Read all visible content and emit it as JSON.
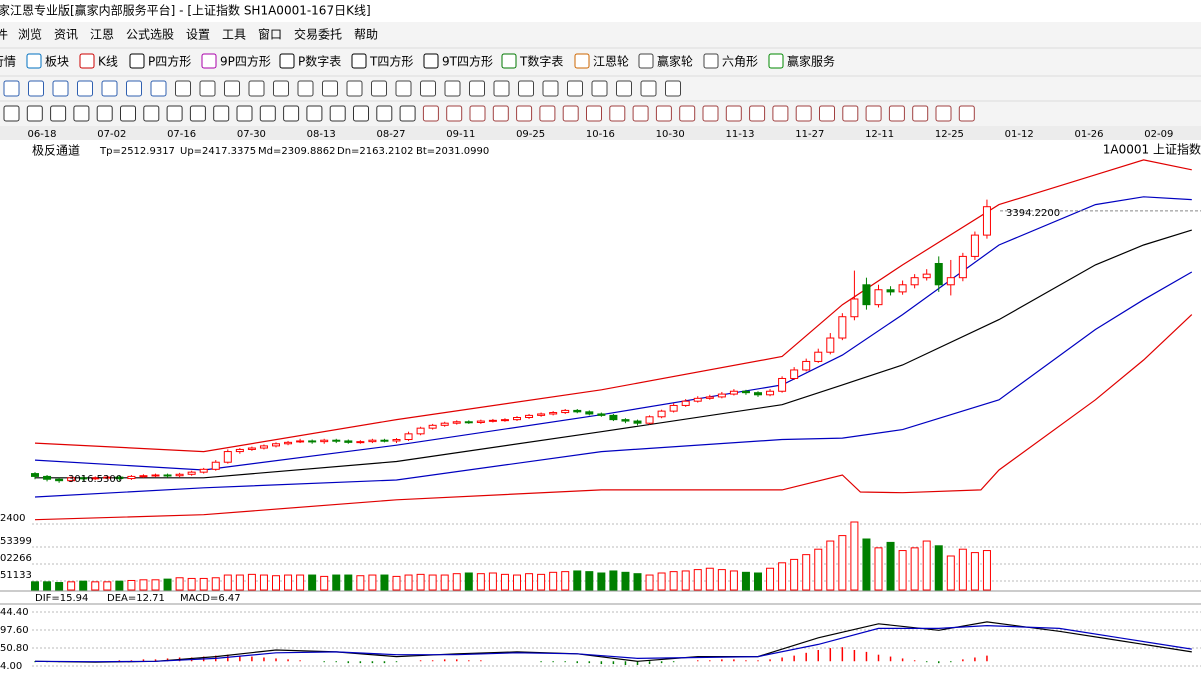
{
  "window": {
    "title": "家江恩专业版[赢家内部服务平台] - [上证指数  SH1A0001-167日K线]"
  },
  "menu": [
    "件",
    "浏览",
    "资讯",
    "江恩",
    "公式选股",
    "设置",
    "工具",
    "窗口",
    "交易委托",
    "帮助"
  ],
  "toolbar": [
    "行情",
    "板块",
    "K线",
    "P四方形",
    "9P四方形",
    "P数字表",
    "T四方形",
    "9T四方形",
    "T数字表",
    "江恩轮",
    "赢家轮",
    "六角形",
    "赢家服务"
  ],
  "chart_data": {
    "type": "candlestick",
    "date_labels": [
      "06-18",
      "07-02",
      "07-16",
      "07-30",
      "08-13",
      "08-27",
      "09-11",
      "09-25",
      "10-16",
      "10-30",
      "11-13",
      "11-27",
      "12-11",
      "12-25",
      "01-12",
      "01-26",
      "02-09"
    ],
    "indicator": {
      "name": "极反通道",
      "items": [
        {
          "label": "Tp=2512.9317",
          "color": "#e00000"
        },
        {
          "label": "Up=2417.3375",
          "color": "#0000c0"
        },
        {
          "label": "Md=2309.8862",
          "color": "#000000"
        },
        {
          "label": "Dn=2163.2102",
          "color": "#0000c0"
        },
        {
          "label": "Bt=2031.0990",
          "color": "#e00000"
        }
      ]
    },
    "symbol": "1A0001  上证指数",
    "ylim": [
      2960,
      3494
    ],
    "up_color": "#ff0000",
    "down_color": "#008000",
    "open": [
      3024,
      3020,
      3016,
      3014,
      3018,
      3017,
      3018,
      3019,
      3017,
      3020,
      3021,
      3022,
      3021,
      3023,
      3026,
      3030,
      3040,
      3055,
      3058,
      3060,
      3063,
      3066,
      3070,
      3070,
      3069,
      3071,
      3070,
      3068,
      3069,
      3071,
      3070,
      3072,
      3080,
      3088,
      3092,
      3095,
      3097,
      3096,
      3098,
      3099,
      3100,
      3103,
      3106,
      3108,
      3110,
      3113,
      3111,
      3108,
      3106,
      3100,
      3098,
      3095,
      3104,
      3112,
      3120,
      3126,
      3130,
      3132,
      3136,
      3140,
      3138,
      3135,
      3140,
      3158,
      3170,
      3182,
      3195,
      3215,
      3245,
      3290,
      3262,
      3283,
      3280,
      3290,
      3300,
      3320,
      3290,
      3300,
      3330,
      3360
    ],
    "high": [
      3026,
      3022,
      3018,
      3020,
      3020,
      3020,
      3021,
      3021,
      3022,
      3023,
      3024,
      3024,
      3025,
      3028,
      3032,
      3043,
      3058,
      3060,
      3062,
      3065,
      3068,
      3070,
      3073,
      3072,
      3073,
      3073,
      3072,
      3071,
      3073,
      3073,
      3074,
      3083,
      3090,
      3094,
      3097,
      3099,
      3099,
      3100,
      3101,
      3102,
      3105,
      3108,
      3110,
      3112,
      3115,
      3115,
      3113,
      3110,
      3108,
      3102,
      3100,
      3106,
      3114,
      3123,
      3129,
      3133,
      3135,
      3139,
      3143,
      3142,
      3140,
      3143,
      3161,
      3174,
      3186,
      3200,
      3222,
      3250,
      3310,
      3300,
      3290,
      3288,
      3296,
      3305,
      3312,
      3330,
      3325,
      3335,
      3365,
      3410
    ],
    "low": [
      3016,
      3013,
      3011,
      3012,
      3014,
      3015,
      3016,
      3014,
      3015,
      3018,
      3019,
      3018,
      3019,
      3021,
      3024,
      3028,
      3038,
      3052,
      3056,
      3058,
      3061,
      3064,
      3067,
      3066,
      3066,
      3067,
      3066,
      3066,
      3067,
      3068,
      3067,
      3070,
      3078,
      3086,
      3090,
      3093,
      3094,
      3094,
      3096,
      3097,
      3098,
      3101,
      3104,
      3106,
      3108,
      3109,
      3106,
      3104,
      3098,
      3095,
      3092,
      3093,
      3102,
      3110,
      3118,
      3124,
      3128,
      3130,
      3134,
      3135,
      3132,
      3133,
      3138,
      3156,
      3168,
      3180,
      3192,
      3212,
      3240,
      3255,
      3258,
      3275,
      3276,
      3285,
      3296,
      3280,
      3275,
      3295,
      3325,
      3355
    ],
    "close": [
      3020,
      3016,
      3014,
      3018,
      3017,
      3018,
      3019,
      3017,
      3020,
      3021,
      3022,
      3021,
      3023,
      3026,
      3030,
      3040,
      3055,
      3058,
      3060,
      3063,
      3066,
      3068,
      3070,
      3069,
      3071,
      3070,
      3068,
      3069,
      3071,
      3070,
      3072,
      3080,
      3088,
      3092,
      3095,
      3097,
      3096,
      3098,
      3099,
      3100,
      3103,
      3106,
      3108,
      3110,
      3113,
      3111,
      3108,
      3106,
      3100,
      3098,
      3095,
      3104,
      3112,
      3120,
      3126,
      3130,
      3132,
      3136,
      3140,
      3138,
      3135,
      3140,
      3158,
      3170,
      3182,
      3195,
      3215,
      3245,
      3270,
      3262,
      3283,
      3280,
      3290,
      3300,
      3305,
      3290,
      3300,
      3330,
      3360,
      3400
    ],
    "annotations": [
      {
        "value": 3394.22,
        "label": "3394.2200"
      },
      {
        "value": 3016.53,
        "label": "3016.5300"
      }
    ],
    "bands": [
      {
        "color": "#e00000",
        "x": [
          0,
          14,
          30,
          47,
          62,
          67,
          72,
          80,
          88,
          92,
          96
        ],
        "values": [
          3067,
          3055,
          3100,
          3142,
          3189,
          3262,
          3318,
          3403,
          3445,
          3466,
          3452
        ]
      },
      {
        "color": "#0000c0",
        "x": [
          0,
          14,
          30,
          47,
          62,
          67,
          72,
          80,
          88,
          92,
          96
        ],
        "values": [
          3043,
          3029,
          3064,
          3107,
          3149,
          3191,
          3248,
          3346,
          3403,
          3414,
          3410
        ]
      },
      {
        "color": "#000000",
        "x": [
          0,
          14,
          30,
          47,
          62,
          67,
          72,
          80,
          88,
          92,
          96
        ],
        "values": [
          3018,
          3018,
          3041,
          3083,
          3121,
          3149,
          3177,
          3241,
          3318,
          3346,
          3367
        ]
      },
      {
        "color": "#0000c0",
        "x": [
          0,
          14,
          30,
          47,
          62,
          67,
          72,
          80,
          88,
          92,
          96
        ],
        "values": [
          2991,
          3004,
          3015,
          3055,
          3072,
          3074,
          3086,
          3128,
          3227,
          3269,
          3308
        ]
      },
      {
        "color": "#e00000",
        "x": [
          0,
          14,
          30,
          47,
          62,
          67,
          68.5,
          72,
          78.5,
          80,
          88,
          92,
          96
        ],
        "values": [
          2959,
          2966,
          2987,
          3001,
          3001,
          3022,
          2998,
          2997,
          3001,
          3029,
          3128,
          3184,
          3248
        ]
      }
    ],
    "volume": {
      "ylim": [
        0,
        100
      ],
      "axis_labels": [
        "2400",
        "53399",
        "02266",
        "51133"
      ],
      "values": [
        12,
        12,
        11,
        12,
        13,
        12,
        12,
        13,
        14,
        15,
        15,
        16,
        18,
        17,
        17,
        18,
        22,
        22,
        23,
        22,
        21,
        22,
        22,
        22,
        20,
        22,
        22,
        21,
        22,
        22,
        20,
        22,
        23,
        22,
        22,
        24,
        25,
        24,
        25,
        23,
        22,
        24,
        23,
        26,
        27,
        28,
        27,
        25,
        28,
        26,
        24,
        22,
        25,
        27,
        28,
        30,
        32,
        30,
        28,
        26,
        25,
        32,
        40,
        45,
        52,
        60,
        72,
        80,
        100,
        75,
        62,
        70,
        58,
        62,
        72,
        65,
        50,
        60,
        55,
        58
      ]
    },
    "macd": {
      "ylim": [
        -20,
        60
      ],
      "axis_labels": [
        "44.40",
        "97.60",
        "50.80",
        "4.00"
      ],
      "labels": [
        {
          "text": "DIF=15.94",
          "color": "#000000"
        },
        {
          "text": "DEA=12.71",
          "color": "#0000c0"
        },
        {
          "text": "MACD=6.47",
          "color": "#c000c0"
        }
      ],
      "dif": {
        "color": "#000000",
        "x": [
          0,
          5,
          10,
          15,
          20,
          25,
          30,
          35,
          40,
          45,
          50,
          55,
          60,
          65,
          70,
          75,
          79,
          85,
          90,
          96
        ],
        "values": [
          0,
          -1,
          0,
          5,
          12,
          10,
          5,
          8,
          10,
          8,
          0,
          5,
          5,
          25,
          40,
          33,
          42,
          32,
          22,
          10
        ]
      },
      "dea": {
        "color": "#0000c0",
        "x": [
          0,
          5,
          10,
          15,
          20,
          25,
          30,
          35,
          40,
          45,
          50,
          55,
          60,
          65,
          70,
          75,
          79,
          85,
          90,
          96
        ],
        "values": [
          0,
          -0.5,
          0,
          3,
          9,
          10,
          7,
          7,
          9,
          8,
          3,
          4,
          5,
          18,
          35,
          35,
          38,
          35,
          25,
          13
        ]
      },
      "hist": [
        -1,
        -1,
        -1,
        0,
        0,
        0,
        0,
        1,
        1,
        2,
        2,
        3,
        4,
        4,
        5,
        6,
        7,
        6,
        5,
        4,
        3,
        2,
        1,
        0,
        -1,
        -1,
        -2,
        -2,
        -2,
        -2,
        -1,
        0,
        1,
        1,
        2,
        2,
        1,
        1,
        0,
        0,
        0,
        0,
        -1,
        -1,
        -1,
        -2,
        -2,
        -3,
        -3,
        -4,
        -4,
        -3,
        -2,
        -1,
        0,
        1,
        1,
        2,
        2,
        1,
        1,
        2,
        4,
        6,
        9,
        12,
        14,
        15,
        12,
        10,
        7,
        5,
        3,
        1,
        -1,
        -2,
        -1,
        2,
        4,
        6
      ]
    }
  }
}
